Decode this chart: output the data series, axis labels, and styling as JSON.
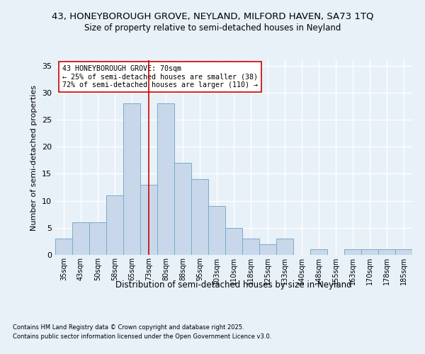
{
  "title1": "43, HONEYBOROUGH GROVE, NEYLAND, MILFORD HAVEN, SA73 1TQ",
  "title2": "Size of property relative to semi-detached houses in Neyland",
  "xlabel": "Distribution of semi-detached houses by size in Neyland",
  "ylabel": "Number of semi-detached properties",
  "categories": [
    "35sqm",
    "43sqm",
    "50sqm",
    "58sqm",
    "65sqm",
    "73sqm",
    "80sqm",
    "88sqm",
    "95sqm",
    "103sqm",
    "110sqm",
    "118sqm",
    "125sqm",
    "133sqm",
    "140sqm",
    "148sqm",
    "155sqm",
    "163sqm",
    "170sqm",
    "178sqm",
    "185sqm"
  ],
  "values": [
    3,
    6,
    6,
    11,
    28,
    13,
    28,
    17,
    14,
    9,
    5,
    3,
    2,
    3,
    0,
    1,
    0,
    1,
    1,
    1,
    1
  ],
  "bar_color": "#c8d8ea",
  "bar_edge_color": "#7aaac8",
  "bg_color": "#e8f0f8",
  "grid_color": "#ffffff",
  "property_line_x": 5.0,
  "annotation_title": "43 HONEYBOROUGH GROVE: 70sqm",
  "annotation_line1": "← 25% of semi-detached houses are smaller (38)",
  "annotation_line2": "72% of semi-detached houses are larger (110) →",
  "annotation_box_color": "#ffffff",
  "annotation_box_edge": "#cc0000",
  "vline_color": "#cc0000",
  "ylim": [
    0,
    36
  ],
  "yticks": [
    0,
    5,
    10,
    15,
    20,
    25,
    30,
    35
  ],
  "footer1": "Contains HM Land Registry data © Crown copyright and database right 2025.",
  "footer2": "Contains public sector information licensed under the Open Government Licence v3.0."
}
